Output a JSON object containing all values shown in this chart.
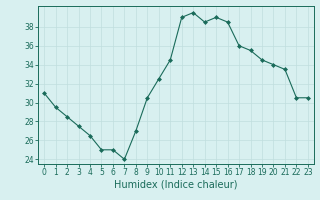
{
  "x": [
    0,
    1,
    2,
    3,
    4,
    5,
    6,
    7,
    8,
    9,
    10,
    11,
    12,
    13,
    14,
    15,
    16,
    17,
    18,
    19,
    20,
    21,
    22,
    23
  ],
  "y": [
    31,
    29.5,
    28.5,
    27.5,
    26.5,
    25,
    25,
    24,
    27,
    30.5,
    32.5,
    34.5,
    39,
    39.5,
    38.5,
    39,
    38.5,
    36,
    35.5,
    34.5,
    34,
    33.5,
    30.5,
    30.5
  ],
  "line_color": "#1a6b5a",
  "marker_color": "#1a6b5a",
  "bg_color": "#d8f0f0",
  "grid_color": "#c0dede",
  "xlabel": "Humidex (Indice chaleur)",
  "ylim": [
    23.5,
    40.2
  ],
  "xlim": [
    -0.5,
    23.5
  ],
  "yticks": [
    24,
    26,
    28,
    30,
    32,
    34,
    36,
    38
  ],
  "xticks": [
    0,
    1,
    2,
    3,
    4,
    5,
    6,
    7,
    8,
    9,
    10,
    11,
    12,
    13,
    14,
    15,
    16,
    17,
    18,
    19,
    20,
    21,
    22,
    23
  ],
  "tick_fontsize": 5.5,
  "label_fontsize": 7.0
}
